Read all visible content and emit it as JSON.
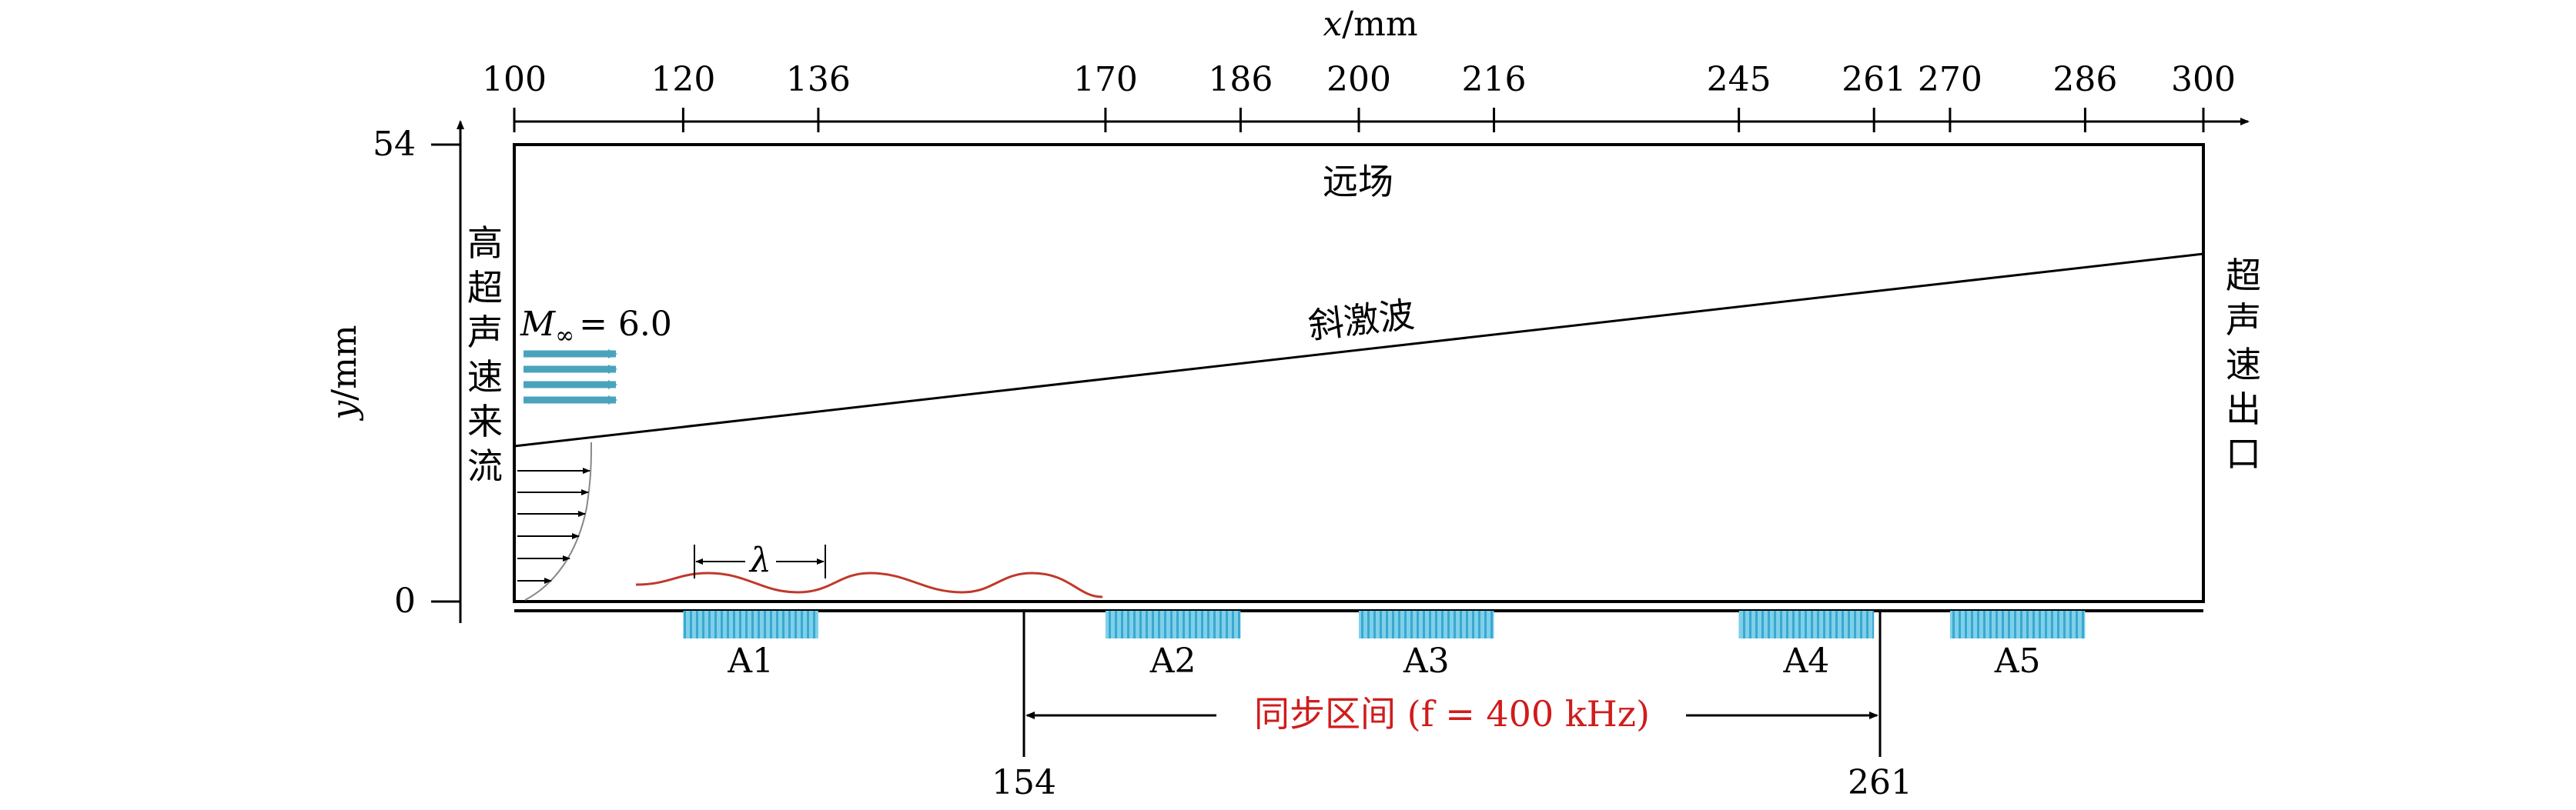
{
  "x_axis": {
    "title_var": "x",
    "title_unit": "/mm",
    "ticks": [
      "100",
      "120",
      "136",
      "170",
      "186",
      "200",
      "216",
      "245",
      "261",
      "270",
      "286",
      "300"
    ]
  },
  "y_axis": {
    "title_var": "y",
    "title_unit": "/mm",
    "ticks": [
      "54",
      "0"
    ]
  },
  "labels": {
    "far_field": "远场",
    "oblique_shock": "斜激波",
    "inflow_chars": [
      "高",
      "超",
      "声",
      "速",
      "来",
      "流"
    ],
    "outlet_chars": [
      "超",
      "声",
      "速",
      "出",
      "口"
    ],
    "mach_symbol": "M",
    "mach_sub": "∞",
    "mach_value": "= 6.0",
    "wavelength": "λ",
    "sync_zone": "同步区间 (f = 400 kHz)",
    "sync_start": "154",
    "sync_end": "261"
  },
  "actuators": [
    "A1",
    "A2",
    "A3",
    "A4",
    "A5"
  ],
  "colors": {
    "line": "#000000",
    "arrow_teal": "#4aa3bd",
    "actuator_blue": "#5bc0e0",
    "wave_red": "#c0392b",
    "sync_red": "#d01c1c"
  }
}
